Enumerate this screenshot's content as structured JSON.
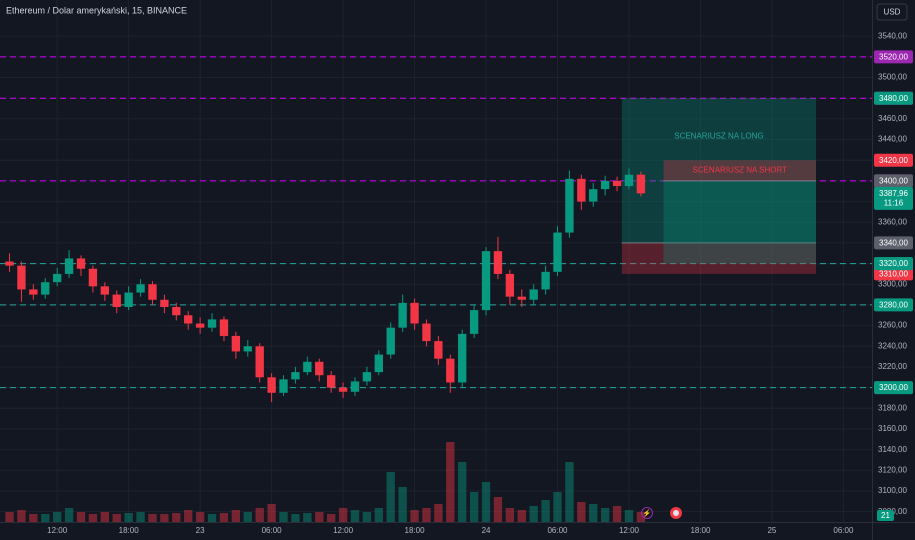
{
  "chart_data": {
    "type": "candlestick",
    "title": "Ethereum / Dolar amerykański, 15, BINANCE",
    "currency": "USD",
    "volume_tag": "21",
    "x": [
      -4,
      -3,
      -2,
      -1,
      0,
      1,
      2,
      3,
      4,
      5,
      6,
      7,
      8,
      9,
      10,
      11,
      12,
      13,
      14,
      15,
      16,
      17,
      18,
      19,
      20,
      21,
      22,
      23,
      24,
      25,
      26,
      27,
      28,
      29,
      30,
      31,
      32,
      33,
      34,
      35,
      36,
      37,
      38,
      39,
      40,
      41,
      42,
      43,
      44,
      45,
      46,
      47,
      48,
      49
    ],
    "open": [
      3322,
      3318,
      3295,
      3290,
      3302,
      3310,
      3325,
      3315,
      3298,
      3290,
      3278,
      3292,
      3300,
      3285,
      3278,
      3270,
      3262,
      3258,
      3266,
      3250,
      3235,
      3240,
      3210,
      3195,
      3208,
      3215,
      3225,
      3212,
      3200,
      3196,
      3206,
      3215,
      3232,
      3258,
      3282,
      3262,
      3245,
      3228,
      3205,
      3252,
      3275,
      3332,
      3310,
      3288,
      3285,
      3295,
      3312,
      3350,
      3402,
      3380,
      3392,
      3400,
      3395,
      3406
    ],
    "high": [
      3330,
      3322,
      3300,
      3306,
      3316,
      3333,
      3328,
      3318,
      3302,
      3294,
      3298,
      3305,
      3303,
      3290,
      3282,
      3274,
      3268,
      3272,
      3269,
      3254,
      3246,
      3243,
      3214,
      3212,
      3220,
      3230,
      3228,
      3216,
      3205,
      3210,
      3220,
      3236,
      3263,
      3290,
      3286,
      3266,
      3250,
      3232,
      3256,
      3280,
      3336,
      3346,
      3314,
      3295,
      3300,
      3318,
      3356,
      3410,
      3406,
      3398,
      3405,
      3404,
      3412,
      3409
    ],
    "low": [
      3312,
      3283,
      3285,
      3286,
      3298,
      3306,
      3308,
      3292,
      3284,
      3272,
      3275,
      3288,
      3280,
      3272,
      3265,
      3256,
      3252,
      3254,
      3245,
      3228,
      3230,
      3205,
      3186,
      3192,
      3204,
      3212,
      3206,
      3195,
      3190,
      3192,
      3202,
      3212,
      3228,
      3254,
      3256,
      3240,
      3222,
      3195,
      3200,
      3248,
      3270,
      3305,
      3280,
      3278,
      3280,
      3290,
      3308,
      3345,
      3372,
      3375,
      3386,
      3390,
      3392,
      3385
    ],
    "close": [
      3318,
      3295,
      3290,
      3302,
      3310,
      3325,
      3315,
      3298,
      3290,
      3278,
      3292,
      3300,
      3285,
      3278,
      3270,
      3262,
      3258,
      3266,
      3250,
      3235,
      3240,
      3210,
      3195,
      3208,
      3215,
      3225,
      3212,
      3200,
      3196,
      3206,
      3215,
      3232,
      3258,
      3282,
      3262,
      3245,
      3228,
      3205,
      3252,
      3275,
      3332,
      3310,
      3288,
      3285,
      3295,
      3312,
      3350,
      3402,
      3380,
      3392,
      3400,
      3395,
      3406,
      3387.96
    ],
    "volume": {
      "values": [
        10,
        12,
        8,
        8,
        10,
        14,
        10,
        8,
        10,
        8,
        9,
        10,
        8,
        8,
        9,
        12,
        10,
        8,
        9,
        12,
        10,
        14,
        18,
        10,
        8,
        9,
        10,
        8,
        14,
        12,
        10,
        14,
        50,
        35,
        12,
        14,
        18,
        80,
        60,
        30,
        40,
        25,
        14,
        12,
        16,
        22,
        30,
        60,
        20,
        18,
        14,
        16,
        12,
        10
      ],
      "ylim": [
        0,
        140
      ]
    },
    "up_color": "#089981",
    "down_color": "#f23645",
    "xlim": [
      -4.8,
      68.4
    ],
    "xticks": [
      {
        "value": 0,
        "label": "12:00"
      },
      {
        "value": 6,
        "label": "18:00"
      },
      {
        "value": 12,
        "label": "23"
      },
      {
        "value": 18,
        "label": "06:00"
      },
      {
        "value": 24,
        "label": "12:00"
      },
      {
        "value": 30,
        "label": "18:00"
      },
      {
        "value": 36,
        "label": "24"
      },
      {
        "value": 42,
        "label": "06:00"
      },
      {
        "value": 48,
        "label": "12:00"
      },
      {
        "value": 54,
        "label": "18:00"
      },
      {
        "value": 60,
        "label": "25"
      },
      {
        "value": 66,
        "label": "06:00"
      }
    ],
    "ylim": [
      3070,
      3575
    ],
    "yticks": [
      {
        "value": 3080,
        "label": "3080,00"
      },
      {
        "value": 3100,
        "label": "3100,00"
      },
      {
        "value": 3120,
        "label": "3120,00"
      },
      {
        "value": 3140,
        "label": "3140,00"
      },
      {
        "value": 3160,
        "label": "3160,00"
      },
      {
        "value": 3180,
        "label": "3180,00"
      },
      {
        "value": 3200,
        "label": "3200,00"
      },
      {
        "value": 3220,
        "label": "3220,00"
      },
      {
        "value": 3240,
        "label": "3240,00"
      },
      {
        "value": 3260,
        "label": "3260,00"
      },
      {
        "value": 3280,
        "label": "3280,00"
      },
      {
        "value": 3300,
        "label": "3300,00"
      },
      {
        "value": 3320,
        "label": "3320,00"
      },
      {
        "value": 3340,
        "label": "3340,00"
      },
      {
        "value": 3360,
        "label": "3360,00"
      },
      {
        "value": 3380,
        "label": "3380,00"
      },
      {
        "value": 3400,
        "label": "3400,00"
      },
      {
        "value": 3420,
        "label": "3420,00"
      },
      {
        "value": 3440,
        "label": "3440,00"
      },
      {
        "value": 3460,
        "label": "3460,00"
      },
      {
        "value": 3480,
        "label": "3480,00"
      },
      {
        "value": 3500,
        "label": "3500,00"
      },
      {
        "value": 3520,
        "label": "3520,00"
      },
      {
        "value": 3540,
        "label": "3540,00"
      }
    ],
    "grid": true,
    "levels": [
      {
        "value": 3520,
        "label": "3520,00",
        "color": "#d500f9",
        "tag_color": "#9c27b0"
      },
      {
        "value": 3480,
        "label": "3480,00",
        "color": "#d500f9",
        "tag_color": "#9c27b0"
      },
      {
        "value": 3400,
        "label": "3400,00",
        "color": "#d500f9",
        "tag_color": "#9c27b0"
      },
      {
        "value": 3320,
        "label": "3320,00",
        "color": "#26a69a",
        "tag_color": "#089981"
      },
      {
        "value": 3280,
        "label": "3280,00",
        "color": "#26a69a",
        "tag_color": "#089981"
      },
      {
        "value": 3200,
        "label": "3200,00",
        "color": "#26a69a",
        "tag_color": "#089981"
      }
    ],
    "positions": [
      {
        "text": "SCENARIUSZ NA LONG",
        "text_color": "#26a69a",
        "entry": {
          "value": 3340,
          "label": "3340,00"
        },
        "target": {
          "value": 3480,
          "label": "3480,00"
        },
        "stop": {
          "value": 3310,
          "label": "3310,00"
        },
        "xlim": [
          47.4,
          63.7
        ]
      },
      {
        "text": "SCENARIUSZ NA SHORT",
        "text_color": "#f23645",
        "entry": {
          "value": 3400,
          "label": "3400,00"
        },
        "target": {
          "value": 3320,
          "label": "3320,00"
        },
        "stop": {
          "value": 3420,
          "label": "3420,00"
        },
        "xlim": [
          50.9,
          63.7
        ]
      }
    ],
    "last_price": {
      "value": 3387.96,
      "label": "3387,96",
      "countdown": "11:16"
    }
  }
}
